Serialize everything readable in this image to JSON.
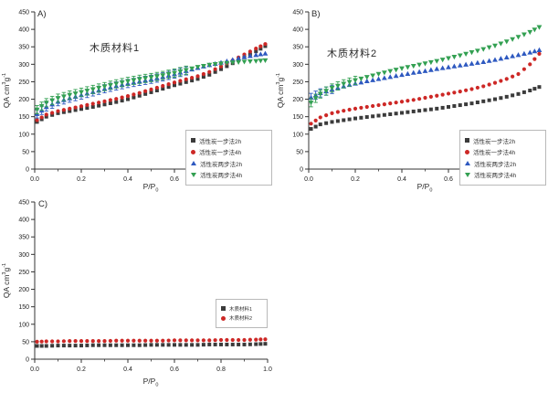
{
  "figure": {
    "background": "#ffffff",
    "axis_color": "#333333",
    "text_color": "#222222",
    "y_axis": {
      "label_pre": "QA cm",
      "label_sup": "3",
      "label_mid": "g",
      "label_sup2": "-1",
      "tick_labels": [
        "0",
        "50",
        "100",
        "150",
        "200",
        "250",
        "300",
        "350",
        "400",
        "450"
      ],
      "min": 0,
      "max": 450
    },
    "x_axis": {
      "label_pre": "P/P",
      "label_sub": "0",
      "tick_labels": [
        "0.0",
        "0.2",
        "0.4",
        "0.6",
        "0.8",
        "1.0"
      ],
      "minor_step": 0.1,
      "min": 0,
      "max": 1
    }
  },
  "chart_data": [
    {
      "panel": "A)",
      "type": "scatter",
      "title": "木质材料1",
      "xlabel": "P/P0",
      "ylabel": "QA cm3 g-1",
      "xlim": [
        0,
        1
      ],
      "ylim": [
        0,
        450
      ],
      "legend_position": "lower-right",
      "x": [
        0.01,
        0.05,
        0.1,
        0.15,
        0.2,
        0.25,
        0.3,
        0.35,
        0.4,
        0.45,
        0.5,
        0.55,
        0.6,
        0.65,
        0.7,
        0.75,
        0.8,
        0.85,
        0.9,
        0.95,
        0.99
      ],
      "series": [
        {
          "name": "活性炭一步法2h",
          "marker": "square",
          "color": "#3b3b3b",
          "values": [
            135,
            150,
            160,
            166,
            172,
            178,
            185,
            192,
            200,
            210,
            220,
            230,
            240,
            249,
            258,
            270,
            286,
            303,
            320,
            337,
            352
          ]
        },
        {
          "name": "活性炭一步法4h",
          "marker": "circle",
          "color": "#cd2826",
          "values": [
            140,
            156,
            166,
            173,
            180,
            187,
            194,
            201,
            209,
            218,
            228,
            238,
            248,
            257,
            266,
            278,
            294,
            311,
            328,
            345,
            358
          ]
        },
        {
          "name": "活性炭两步法2h",
          "marker": "tri-up",
          "color": "#2e59c0",
          "error_bars": true,
          "error_max_x": 0.65,
          "values": [
            158,
            178,
            193,
            203,
            212,
            221,
            230,
            238,
            245,
            251,
            257,
            264,
            272,
            281,
            290,
            298,
            305,
            313,
            321,
            327,
            331
          ]
        },
        {
          "name": "活性炭两步法4h",
          "marker": "tri-down",
          "color": "#33a052",
          "error_bars": true,
          "error_max_x": 0.65,
          "values": [
            170,
            190,
            203,
            212,
            220,
            228,
            236,
            244,
            251,
            257,
            262,
            268,
            275,
            283,
            292,
            298,
            302,
            305,
            307,
            309,
            311
          ]
        }
      ]
    },
    {
      "panel": "B)",
      "type": "scatter",
      "title": "木质材料2",
      "xlabel": "P/P0",
      "ylabel": "QA cm3 g-1",
      "xlim": [
        0,
        1
      ],
      "ylim": [
        0,
        450
      ],
      "legend_position": "lower-right",
      "x": [
        0.01,
        0.05,
        0.1,
        0.15,
        0.2,
        0.25,
        0.3,
        0.35,
        0.4,
        0.45,
        0.5,
        0.55,
        0.6,
        0.65,
        0.7,
        0.75,
        0.8,
        0.85,
        0.9,
        0.95,
        0.99
      ],
      "series": [
        {
          "name": "活性炭一步法2h",
          "marker": "square",
          "color": "#3b3b3b",
          "values": [
            115,
            128,
            135,
            140,
            145,
            149,
            153,
            157,
            161,
            165,
            169,
            173,
            178,
            183,
            188,
            194,
            200,
            207,
            215,
            225,
            235
          ]
        },
        {
          "name": "活性炭一步法4h",
          "marker": "circle",
          "color": "#cd2826",
          "values": [
            130,
            148,
            160,
            167,
            173,
            178,
            183,
            188,
            193,
            198,
            204,
            210,
            216,
            222,
            229,
            237,
            247,
            258,
            272,
            300,
            330
          ]
        },
        {
          "name": "活性炭两步法2h",
          "marker": "tri-up",
          "color": "#2e59c0",
          "error_bars": true,
          "error_max_x": 0.1,
          "values": [
            205,
            218,
            228,
            237,
            245,
            252,
            258,
            264,
            270,
            276,
            281,
            287,
            292,
            297,
            302,
            307,
            313,
            320,
            327,
            334,
            341
          ]
        },
        {
          "name": "活性炭两步法4h",
          "marker": "tri-down",
          "color": "#33a052",
          "error_bars": true,
          "error_max_x": 0.22,
          "values": [
            190,
            215,
            232,
            244,
            254,
            263,
            272,
            280,
            288,
            295,
            302,
            309,
            317,
            325,
            334,
            343,
            353,
            365,
            378,
            392,
            406
          ]
        }
      ]
    },
    {
      "panel": "C)",
      "type": "scatter",
      "xlabel": "P/P0",
      "ylabel": "QA cm3 g-1",
      "xlim": [
        0,
        1
      ],
      "ylim": [
        0,
        450
      ],
      "legend_position": "middle-right",
      "x": [
        0.01,
        0.05,
        0.1,
        0.15,
        0.2,
        0.25,
        0.3,
        0.35,
        0.4,
        0.45,
        0.5,
        0.55,
        0.6,
        0.65,
        0.7,
        0.75,
        0.8,
        0.85,
        0.9,
        0.95,
        0.99
      ],
      "series": [
        {
          "name": "木质材料1",
          "marker": "square",
          "color": "#3b3b3b",
          "values": [
            38,
            38,
            39,
            39,
            39,
            40,
            40,
            40,
            40,
            40,
            41,
            41,
            41,
            41,
            41,
            42,
            42,
            42,
            42,
            43,
            44
          ]
        },
        {
          "name": "木质材料2",
          "marker": "circle",
          "color": "#cd2826",
          "values": [
            50,
            51,
            51,
            52,
            52,
            52,
            52,
            53,
            53,
            53,
            53,
            53,
            54,
            54,
            54,
            54,
            55,
            55,
            55,
            56,
            57
          ]
        }
      ]
    }
  ]
}
